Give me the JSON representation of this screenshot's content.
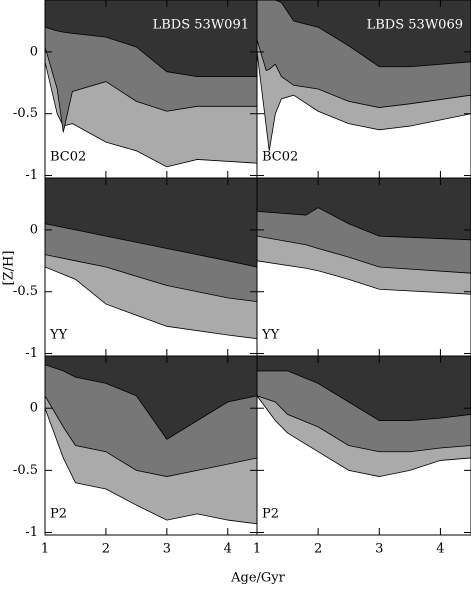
{
  "xlabel": "Age/Gyr",
  "ylabel": "[Z/H]",
  "chart_data": [
    {
      "type": "area",
      "title": "LBDS 53W091",
      "label": "BC02",
      "x": [
        1,
        1.2,
        1.3,
        1.45,
        2,
        2.5,
        3,
        3.5,
        4.48
      ],
      "series": [
        {
          "color": "#333333",
          "values": [
            0.2,
            0.17,
            0.16,
            0.15,
            0.12,
            0.04,
            -0.16,
            -0.2,
            -0.2
          ]
        },
        {
          "color": "#777777",
          "values": [
            0.04,
            -0.3,
            -0.65,
            -0.32,
            -0.24,
            -0.4,
            -0.48,
            -0.44,
            -0.44
          ]
        },
        {
          "color": "#aaaaaa",
          "values": [
            -0.08,
            -0.5,
            -0.6,
            -0.58,
            -0.73,
            -0.8,
            -0.93,
            -0.87,
            -0.9
          ]
        }
      ],
      "xlim": [
        1,
        4.48
      ],
      "ylim": [
        -1.02,
        0.42
      ],
      "xticks": [
        1,
        2,
        3,
        4
      ],
      "yticks": [
        -1,
        -0.5,
        0
      ]
    },
    {
      "type": "area",
      "title": "LBDS 53W069",
      "label": "BC02",
      "x": [
        1,
        1.15,
        1.2,
        1.3,
        1.4,
        1.6,
        2,
        2.5,
        3,
        3.5,
        4.5
      ],
      "series": [
        {
          "color": "#333333",
          "values": [
            0.42,
            0.42,
            0.42,
            0.42,
            0.4,
            0.25,
            0.2,
            0.05,
            -0.12,
            -0.12,
            -0.08
          ]
        },
        {
          "color": "#777777",
          "values": [
            0.1,
            -0.15,
            -0.14,
            -0.1,
            -0.2,
            -0.27,
            -0.3,
            -0.4,
            -0.45,
            -0.42,
            -0.35
          ]
        },
        {
          "color": "#aaaaaa",
          "values": [
            0,
            -0.6,
            -0.8,
            -0.5,
            -0.38,
            -0.35,
            -0.48,
            -0.58,
            -0.63,
            -0.6,
            -0.5
          ]
        }
      ],
      "xlim": [
        1,
        4.5
      ],
      "ylim": [
        -1.02,
        0.42
      ],
      "xticks": [
        1,
        2,
        3,
        4
      ],
      "yticks": [
        -1,
        -0.5,
        0
      ]
    },
    {
      "type": "area",
      "label": "YY",
      "x": [
        1,
        1.5,
        2,
        3,
        4,
        4.48
      ],
      "series": [
        {
          "color": "#333333",
          "values": [
            0.05,
            0,
            -0.05,
            -0.15,
            -0.25,
            -0.3
          ]
        },
        {
          "color": "#777777",
          "values": [
            -0.2,
            -0.25,
            -0.3,
            -0.45,
            -0.55,
            -0.58
          ]
        },
        {
          "color": "#aaaaaa",
          "values": [
            -0.3,
            -0.4,
            -0.6,
            -0.78,
            -0.85,
            -0.88
          ]
        }
      ],
      "xlim": [
        1,
        4.48
      ],
      "ylim": [
        -1.02,
        0.42
      ],
      "xticks": [
        1,
        2,
        3,
        4
      ],
      "yticks": [
        -1,
        -0.5,
        0
      ]
    },
    {
      "type": "area",
      "label": "YY",
      "x": [
        1,
        1.8,
        2,
        2.5,
        3,
        4.5
      ],
      "series": [
        {
          "color": "#333333",
          "values": [
            0.15,
            0.12,
            0.18,
            0.05,
            -0.05,
            -0.08
          ]
        },
        {
          "color": "#777777",
          "values": [
            -0.05,
            -0.12,
            -0.15,
            -0.22,
            -0.3,
            -0.35
          ]
        },
        {
          "color": "#aaaaaa",
          "values": [
            -0.25,
            -0.31,
            -0.33,
            -0.4,
            -0.48,
            -0.52
          ]
        }
      ],
      "xlim": [
        1,
        4.5
      ],
      "ylim": [
        -1.02,
        0.42
      ],
      "xticks": [
        1,
        2,
        3,
        4
      ],
      "yticks": [
        -1,
        -0.5,
        0
      ]
    },
    {
      "type": "area",
      "label": "P2",
      "x": [
        1,
        1.3,
        1.5,
        2,
        2.5,
        3,
        3.5,
        4,
        4.48
      ],
      "series": [
        {
          "color": "#333333",
          "values": [
            0.35,
            0.3,
            0.25,
            0.2,
            0.1,
            -0.25,
            -0.1,
            0.05,
            0.1
          ]
        },
        {
          "color": "#777777",
          "values": [
            0.1,
            -0.15,
            -0.3,
            -0.35,
            -0.5,
            -0.55,
            -0.5,
            -0.45,
            -0.4
          ]
        },
        {
          "color": "#aaaaaa",
          "values": [
            0,
            -0.4,
            -0.6,
            -0.65,
            -0.78,
            -0.9,
            -0.85,
            -0.9,
            -0.93
          ]
        }
      ],
      "xlim": [
        1,
        4.48
      ],
      "ylim": [
        -1.02,
        0.42
      ],
      "xticks": [
        1,
        2,
        3,
        4
      ],
      "yticks": [
        -1,
        -0.5,
        0
      ]
    },
    {
      "type": "area",
      "label": "P2",
      "x": [
        1,
        1.3,
        1.5,
        2,
        2.5,
        3,
        3.5,
        4,
        4.5
      ],
      "series": [
        {
          "color": "#333333",
          "values": [
            0.3,
            0.3,
            0.3,
            0.2,
            0.05,
            -0.1,
            -0.1,
            -0.08,
            -0.05
          ]
        },
        {
          "color": "#777777",
          "values": [
            0.1,
            0.05,
            -0.05,
            -0.15,
            -0.3,
            -0.35,
            -0.35,
            -0.32,
            -0.3
          ]
        },
        {
          "color": "#aaaaaa",
          "values": [
            0.1,
            -0.1,
            -0.2,
            -0.35,
            -0.5,
            -0.55,
            -0.5,
            -0.42,
            -0.4
          ]
        }
      ],
      "xlim": [
        1,
        4.5
      ],
      "ylim": [
        -1.02,
        0.42
      ],
      "xticks": [
        1,
        2,
        3,
        4
      ],
      "yticks": [
        -1,
        -0.5,
        0
      ]
    }
  ]
}
